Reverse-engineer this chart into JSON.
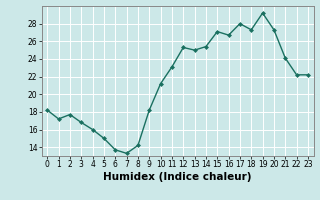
{
  "x": [
    0,
    1,
    2,
    3,
    4,
    5,
    6,
    7,
    8,
    9,
    10,
    11,
    12,
    13,
    14,
    15,
    16,
    17,
    18,
    19,
    20,
    21,
    22,
    23
  ],
  "y": [
    18.2,
    17.2,
    17.7,
    16.8,
    16.0,
    15.0,
    13.7,
    13.3,
    14.2,
    18.2,
    21.2,
    23.1,
    25.3,
    25.0,
    25.4,
    27.1,
    26.7,
    28.0,
    27.3,
    29.2,
    27.3,
    24.1,
    22.2,
    22.2
  ],
  "line_color": "#1a7060",
  "marker": "D",
  "marker_size": 2.0,
  "bg_color": "#cce8e8",
  "grid_color": "#ffffff",
  "xlabel": "Humidex (Indice chaleur)",
  "ylabel": "",
  "ylim": [
    13,
    30
  ],
  "xlim": [
    -0.5,
    23.5
  ],
  "yticks": [
    14,
    16,
    18,
    20,
    22,
    24,
    26,
    28
  ],
  "xticks": [
    0,
    1,
    2,
    3,
    4,
    5,
    6,
    7,
    8,
    9,
    10,
    11,
    12,
    13,
    14,
    15,
    16,
    17,
    18,
    19,
    20,
    21,
    22,
    23
  ],
  "tick_label_size": 5.5,
  "xlabel_size": 7.5,
  "line_width": 1.0,
  "spine_color": "#888888"
}
